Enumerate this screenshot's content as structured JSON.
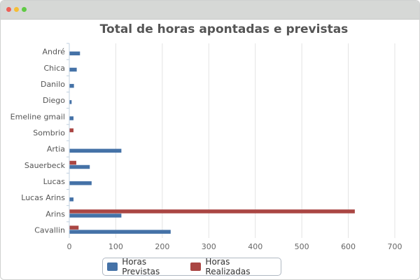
{
  "window": {
    "controls": [
      "close",
      "minimize",
      "maximize"
    ]
  },
  "chart_data": {
    "type": "bar",
    "orientation": "horizontal",
    "title": "Total de horas apontadas e previstas",
    "xlabel": "",
    "ylabel": "",
    "xlim": [
      0,
      700
    ],
    "x_ticks": [
      "0",
      "100",
      "200",
      "300",
      "400",
      "500",
      "600",
      "700"
    ],
    "grid": true,
    "legend_position": "bottom",
    "categories": [
      "André",
      "Chica",
      "Danilo",
      "Diego",
      "Emeline gmail",
      "Sombrio",
      "Artia",
      "Sauerbeck",
      "Lucas",
      "Lucas Arins",
      "Arins",
      "Cavallin"
    ],
    "series": [
      {
        "name": "Horas Previstas",
        "color": "#4572a7",
        "values": [
          23,
          16,
          10,
          5,
          9,
          0,
          112,
          44,
          48,
          9,
          112,
          218
        ]
      },
      {
        "name": "Horas Realizadas",
        "color": "#aa4643",
        "values": [
          0,
          0,
          0,
          0,
          0,
          9,
          0,
          15,
          0,
          0,
          614,
          20
        ]
      }
    ]
  }
}
